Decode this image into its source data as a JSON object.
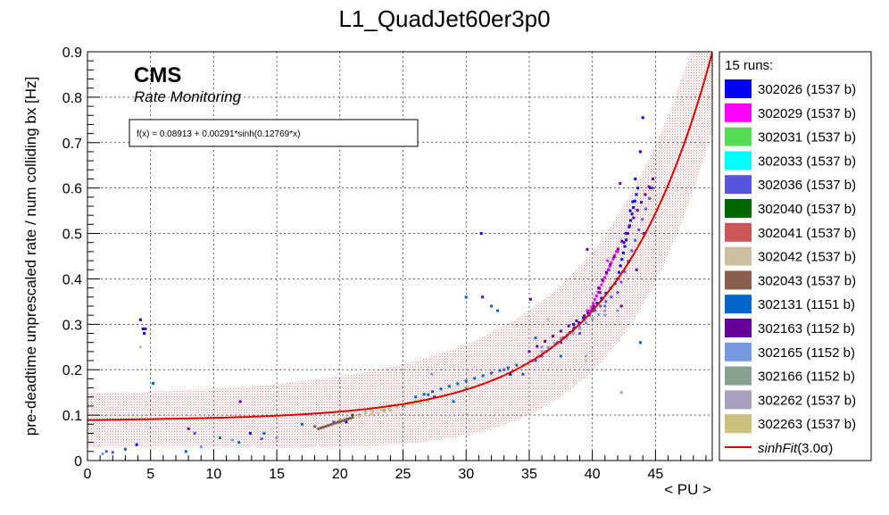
{
  "chart_data": {
    "type": "scatter",
    "title": "L1_QuadJet60er3p0",
    "xlabel": "< PU >",
    "ylabel": "pre-deadtime unprescaled rate / num colliding bx [Hz]",
    "xlim": [
      0,
      49.5
    ],
    "ylim": [
      0,
      0.9
    ],
    "x_ticks": [
      "0",
      "5",
      "10",
      "15",
      "20",
      "25",
      "30",
      "35",
      "40",
      "45"
    ],
    "y_ticks": [
      "0",
      "0.1",
      "0.2",
      "0.3",
      "0.4",
      "0.5",
      "0.6",
      "0.7",
      "0.8",
      "0.9"
    ],
    "grid": true,
    "legend_position": "right",
    "legend_header": "15 runs:",
    "annotations": {
      "cms": "CMS",
      "subtitle": "Rate Monitoring",
      "fit_formula": "f(x) = 0.08913 + 0.00291*sinh(0.12769*x)"
    },
    "fit": {
      "name": "sinhFit(3.0σ)",
      "label_main": "sinhFit",
      "label_sigma": "(3.0σ)",
      "color": "#dd0000",
      "a": 0.08913,
      "b": 0.00291,
      "c": 0.12769,
      "band_halfwidth": [
        0.06,
        0.17
      ],
      "band_color": "#b03030"
    },
    "series": [
      {
        "name": "302026 (1537 b)",
        "color": "#0000ff",
        "points": [
          [
            4.2,
            0.31
          ],
          [
            4.4,
            0.29
          ],
          [
            4.5,
            0.28
          ],
          [
            3.9,
            0.035
          ],
          [
            12.9,
            0.06
          ],
          [
            20.5,
            0.085
          ],
          [
            27.5,
            0.14
          ],
          [
            31.2,
            0.5
          ],
          [
            33.5,
            0.19
          ],
          [
            35.2,
            0.22
          ],
          [
            38.5,
            0.3
          ],
          [
            41.3,
            0.42
          ],
          [
            42.5,
            0.48
          ],
          [
            43,
            0.55
          ],
          [
            43.4,
            0.62
          ],
          [
            43.8,
            0.68
          ],
          [
            44.0,
            0.755
          ],
          [
            43.2,
            0.57
          ]
        ],
        "runs": [
          [
            37.5,
            0.26,
            41.8,
            0.39,
            12
          ],
          [
            42.0,
            0.4,
            43.6,
            0.6,
            14
          ]
        ]
      },
      {
        "name": "302029 (1537 b)",
        "color": "#ff00ff",
        "points": [
          [
            39.6,
            0.33
          ],
          [
            42.0,
            0.46
          ],
          [
            41.2,
            0.44
          ]
        ],
        "runs": [
          [
            39.8,
            0.33,
            41.9,
            0.46,
            16
          ]
        ]
      },
      {
        "name": "302031 (1537 b)",
        "color": "#55dd55",
        "points": [
          [
            20,
            0.09
          ],
          [
            26,
            0.13
          ]
        ],
        "runs": []
      },
      {
        "name": "302033 (1537 b)",
        "color": "#00ffff",
        "points": [
          [
            22,
            0.11
          ],
          [
            28,
            0.14
          ]
        ],
        "runs": []
      },
      {
        "name": "302036 (1537 b)",
        "color": "#5555dd",
        "points": [
          [
            1.5,
            0.02
          ],
          [
            2,
            0.018
          ],
          [
            8.5,
            0.06
          ],
          [
            13.8,
            0.048
          ],
          [
            19.5,
            0.085
          ],
          [
            25,
            0.12
          ],
          [
            33,
            0.2
          ],
          [
            36,
            0.23
          ],
          [
            39,
            0.28
          ],
          [
            41,
            0.34
          ]
        ],
        "runs": [
          [
            35.5,
            0.22,
            41.5,
            0.36,
            14
          ],
          [
            42,
            0.37,
            44.8,
            0.6,
            10
          ]
        ]
      },
      {
        "name": "302040 (1537 b)",
        "color": "#006600",
        "points": [
          [
            21,
            0.1
          ],
          [
            24,
            0.11
          ]
        ],
        "runs": []
      },
      {
        "name": "302041 (1537 b)",
        "color": "#cc5555",
        "points": [
          [
            21.5,
            0.1
          ],
          [
            23.5,
            0.11
          ]
        ],
        "runs": []
      },
      {
        "name": "302042 (1537 b)",
        "color": "#ccc0a0",
        "points": [
          [
            4.2,
            0.25
          ],
          [
            36.5,
            0.31
          ],
          [
            38,
            0.28
          ],
          [
            39.5,
            0.22
          ]
        ],
        "runs": [
          [
            20,
            0.09,
            24,
            0.11,
            8
          ]
        ]
      },
      {
        "name": "302043 (1537 b)",
        "color": "#885e4e",
        "points": [
          [
            18,
            0.075
          ]
        ],
        "runs": [
          [
            18.3,
            0.07,
            21,
            0.095,
            14
          ]
        ]
      },
      {
        "name": "302131 (1151 b)",
        "color": "#0066cc",
        "points": [
          [
            3,
            0.025
          ],
          [
            5.2,
            0.17
          ],
          [
            7.8,
            0.02
          ],
          [
            10.5,
            0.05
          ],
          [
            12,
            0.04
          ],
          [
            14,
            0.06
          ],
          [
            17,
            0.08
          ],
          [
            27,
            0.145
          ],
          [
            29,
            0.13
          ],
          [
            30,
            0.36
          ],
          [
            32,
            0.34
          ],
          [
            32.5,
            0.33
          ],
          [
            34.5,
            0.19
          ],
          [
            35.5,
            0.27
          ],
          [
            37.5,
            0.23
          ],
          [
            43.8,
            0.26
          ]
        ],
        "runs": [
          [
            26,
            0.14,
            34,
            0.21,
            12
          ]
        ]
      },
      {
        "name": "302163 (1152 b)",
        "color": "#660099",
        "points": [
          [
            4.6,
            0.29
          ],
          [
            8,
            0.07
          ],
          [
            12.1,
            0.13
          ],
          [
            31.3,
            0.36
          ],
          [
            35.1,
            0.355
          ],
          [
            39.6,
            0.465
          ],
          [
            40.1,
            0.34
          ],
          [
            40.6,
            0.37
          ],
          [
            42.3,
            0.34
          ],
          [
            43.5,
            0.42
          ],
          [
            44.1,
            0.5
          ],
          [
            44.6,
            0.6
          ],
          [
            42.2,
            0.61
          ]
        ],
        "runs": [
          [
            40.5,
            0.38,
            44.8,
            0.62,
            14
          ],
          [
            35,
            0.24,
            40,
            0.33,
            8
          ]
        ]
      },
      {
        "name": "302165 (1152 b)",
        "color": "#7799dd",
        "points": [
          [
            1.2,
            0.015
          ],
          [
            9,
            0.03
          ],
          [
            11.5,
            0.045
          ],
          [
            15,
            0.05
          ],
          [
            27.3,
            0.19
          ],
          [
            30,
            0.16
          ],
          [
            36,
            0.25
          ],
          [
            41,
            0.32
          ],
          [
            42,
            0.33
          ]
        ],
        "runs": [
          [
            36,
            0.24,
            41,
            0.33,
            10
          ]
        ]
      },
      {
        "name": "302166 (1152 b)",
        "color": "#88a090",
        "points": [
          [
            24,
            0.12
          ],
          [
            30,
            0.16
          ]
        ],
        "runs": []
      },
      {
        "name": "302262 (1537 b)",
        "color": "#aaa0c0",
        "points": [
          [
            37.5,
            0.27
          ],
          [
            39,
            0.29
          ],
          [
            42.3,
            0.15
          ],
          [
            39.5,
            0.23
          ]
        ],
        "runs": [
          [
            34,
            0.2,
            38.5,
            0.28,
            8
          ]
        ]
      },
      {
        "name": "302263 (1537 b)",
        "color": "#ccc080",
        "points": [
          [
            22.5,
            0.11
          ],
          [
            25.5,
            0.125
          ],
          [
            28,
            0.14
          ]
        ],
        "runs": [
          [
            22,
            0.105,
            27,
            0.13,
            8
          ]
        ]
      }
    ]
  }
}
